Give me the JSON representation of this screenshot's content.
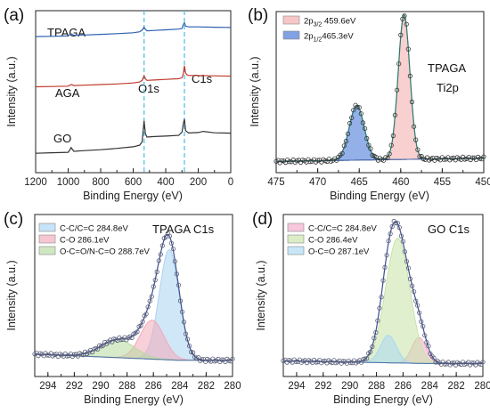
{
  "chart_data": [
    {
      "panel_label": "(a)",
      "type": "line",
      "xlabel": "Binding Energy (eV)",
      "ylabel": "Intensity (a.u.)",
      "xlim": [
        1200,
        0
      ],
      "x_ticks": [
        1200,
        1100,
        1000,
        900,
        800,
        700,
        600,
        500,
        400,
        300,
        200,
        100,
        0
      ],
      "x_tick_labels": [
        "1200",
        "1000",
        "800",
        "600",
        "400",
        "200",
        "0"
      ],
      "series": [
        {
          "name": "TPAGA",
          "color": "#2f5fb0",
          "x": [
            1200,
            1100,
            1000,
            990,
            978,
            965,
            900,
            800,
            700,
            600,
            560,
            545,
            533,
            525,
            515,
            470,
            400,
            320,
            300,
            292,
            285,
            278,
            260,
            200,
            100,
            0
          ],
          "y": [
            84,
            84.2,
            84.4,
            85.2,
            85.6,
            84.8,
            85,
            85.4,
            85.8,
            86.4,
            87,
            88,
            89.8,
            88.5,
            87.6,
            87.8,
            88.2,
            88.6,
            89,
            91.5,
            92.5,
            90.5,
            90,
            90,
            89.8,
            89.6
          ]
        },
        {
          "name": "AGA",
          "color": "#c0392b",
          "x": [
            1200,
            1100,
            1000,
            990,
            978,
            965,
            900,
            800,
            700,
            600,
            560,
            545,
            533,
            525,
            515,
            470,
            400,
            320,
            300,
            292,
            285,
            278,
            270,
            260,
            200,
            100,
            0
          ],
          "y": [
            53,
            53.2,
            53.4,
            54,
            54.4,
            53.8,
            54,
            54.4,
            54.8,
            55.4,
            56,
            57,
            59.8,
            58,
            57,
            57.2,
            57.6,
            58,
            58.6,
            61,
            66,
            61.5,
            60.5,
            60,
            60,
            59.8,
            59.6
          ]
        },
        {
          "name": "GO",
          "color": "#333333",
          "x": [
            1200,
            1100,
            1000,
            990,
            982,
            975,
            965,
            900,
            800,
            700,
            600,
            560,
            545,
            533,
            525,
            515,
            470,
            400,
            320,
            300,
            292,
            285,
            278,
            260,
            200,
            170,
            100,
            0
          ],
          "y": [
            12,
            12.3,
            12.6,
            14,
            15.5,
            14.5,
            13.2,
            13.6,
            14.2,
            15,
            16,
            17,
            19,
            32,
            24,
            22,
            22.3,
            22.6,
            23,
            25,
            30,
            33,
            26,
            24.5,
            24.8,
            25.5,
            24.6,
            24.4
          ]
        }
      ],
      "series_labels": [
        "TPAGA",
        "AGA",
        "GO"
      ],
      "annotations": [
        "O1s",
        "C1s"
      ],
      "ylim": [
        0,
        100
      ]
    },
    {
      "panel_label": "(b)",
      "type": "line",
      "xlabel": "Binding Energy (eV)",
      "ylabel": "Intensity (a.u.)",
      "xlim": [
        475,
        450
      ],
      "x_tick_labels": [
        "475",
        "470",
        "465",
        "460",
        "455",
        "450"
      ],
      "annotations": [
        "TPAGA",
        "Ti2p"
      ],
      "legend": [
        {
          "pre": "2p",
          "sub": "3/2",
          "post": " 459.6eV",
          "color": "#f2a9a9"
        },
        {
          "pre": "2p",
          "sub": "1/2",
          "post": "465.3eV",
          "color": "#3d6fd6"
        }
      ],
      "peaks": [
        {
          "center": 459.6,
          "height": 90,
          "width": 0.7,
          "color": "#f2a9a9"
        },
        {
          "center": 465.3,
          "height": 34,
          "width": 0.9,
          "color": "#3d6fd6"
        }
      ],
      "ylim": [
        0,
        100
      ]
    },
    {
      "panel_label": "(c)",
      "type": "line",
      "xlabel": "Binding Energy (eV)",
      "ylabel": "Intensity (a.u.)",
      "xlim": [
        295,
        280
      ],
      "x_tick_labels": [
        "294",
        "292",
        "290",
        "288",
        "286",
        "284",
        "282",
        "280"
      ],
      "annotations": [
        "TPAGA C1s"
      ],
      "legend": [
        {
          "label": "C-C/C=C 284.8eV",
          "color": "#a9d4f2"
        },
        {
          "label": "C-O 286.1eV",
          "color": "#f2a9b8"
        },
        {
          "label": "O-C=O/N-C=O 288.7eV",
          "color": "#b7dba0"
        }
      ],
      "peaks": [
        {
          "center": 284.8,
          "height": 68,
          "width": 0.75,
          "color": "#a9d4f2"
        },
        {
          "center": 286.1,
          "height": 24,
          "width": 0.9,
          "color": "#f2a9b8"
        },
        {
          "center": 288.7,
          "height": 11,
          "width": 1.3,
          "color": "#b7dba0"
        }
      ],
      "ylim": [
        0,
        100
      ]
    },
    {
      "panel_label": "(d)",
      "type": "line",
      "xlabel": "Binding Energy (eV)",
      "ylabel": "Intensity (a.u.)",
      "xlim": [
        295,
        280
      ],
      "x_tick_labels": [
        "294",
        "292",
        "290",
        "288",
        "286",
        "284",
        "282",
        "280"
      ],
      "annotations": [
        "GO C1s"
      ],
      "legend": [
        {
          "label": "C-C/C=C 284.8eV",
          "color": "#f2a9c8"
        },
        {
          "label": "C-O 286.4eV",
          "color": "#c6e3a8"
        },
        {
          "label": "O-C=O 287.1eV",
          "color": "#a9d8f2"
        }
      ],
      "peaks": [
        {
          "center": 284.8,
          "height": 16,
          "width": 0.55,
          "color": "#f2a9c8"
        },
        {
          "center": 286.4,
          "height": 77,
          "width": 0.9,
          "color": "#c6e3a8"
        },
        {
          "center": 287.1,
          "height": 17,
          "width": 0.6,
          "color": "#a9d8f2"
        }
      ],
      "ylim": [
        0,
        100
      ]
    }
  ]
}
